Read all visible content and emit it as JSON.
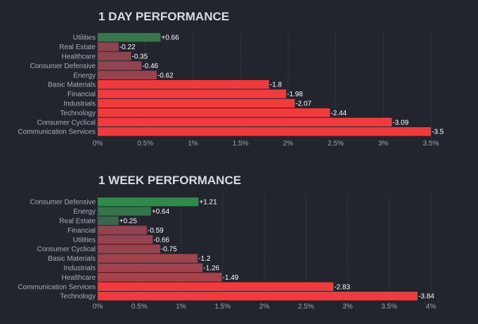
{
  "chart_data": [
    {
      "type": "bar",
      "orientation": "horizontal",
      "title": "1 DAY PERFORMANCE",
      "categories": [
        "Utilities",
        "Real Estate",
        "Healthcare",
        "Consumer Defensive",
        "Energy",
        "Basic Materials",
        "Financial",
        "Industrials",
        "Technology",
        "Consumer Cyclical",
        "Communication Services"
      ],
      "values": [
        0.66,
        -0.22,
        -0.35,
        -0.46,
        -0.62,
        -1.8,
        -1.98,
        -2.07,
        -2.44,
        -3.09,
        -3.5
      ],
      "value_labels": [
        "+0.66",
        "-0.22",
        "-0.35",
        "-0.46",
        "-0.62",
        "-1.8",
        "-1.98",
        "-2.07",
        "-2.44",
        "-3.09",
        "-3.5"
      ],
      "xlim": [
        0,
        3.5
      ],
      "x_ticks": [
        "0%",
        "0.5%",
        "1%",
        "1.5%",
        "2%",
        "2.5%",
        "3%",
        "3.5%"
      ],
      "bar_length": "absolute value",
      "grid": true,
      "xlabel": "",
      "ylabel": ""
    },
    {
      "type": "bar",
      "orientation": "horizontal",
      "title": "1 WEEK PERFORMANCE",
      "categories": [
        "Consumer Defensive",
        "Energy",
        "Real Estate",
        "Financial",
        "Utilities",
        "Consumer Cyclical",
        "Basic Materials",
        "Industrials",
        "Healthcare",
        "Communication Services",
        "Technology"
      ],
      "values": [
        1.21,
        0.64,
        0.25,
        -0.59,
        -0.66,
        -0.75,
        -1.2,
        -1.26,
        -1.49,
        -2.83,
        -3.84
      ],
      "value_labels": [
        "+1.21",
        "+0.64",
        "+0.25",
        "-0.59",
        "-0.66",
        "-0.75",
        "-1.2",
        "-1.26",
        "-1.49",
        "-2.83",
        "-3.84"
      ],
      "xlim": [
        0,
        4
      ],
      "x_ticks": [
        "0%",
        "0.5%",
        "1%",
        "1.5%",
        "2%",
        "2.5%",
        "3%",
        "3.5%",
        "4%"
      ],
      "bar_length": "absolute value",
      "grid": true,
      "xlabel": "",
      "ylabel": ""
    }
  ],
  "colors": {
    "background": "#22252d",
    "positive_strong": "#2f8a4b",
    "positive_weak": "#3d5e4c",
    "negative_weak": "#8b4450",
    "negative_strong": "#f23a3d",
    "grid": "#3a3e48"
  }
}
